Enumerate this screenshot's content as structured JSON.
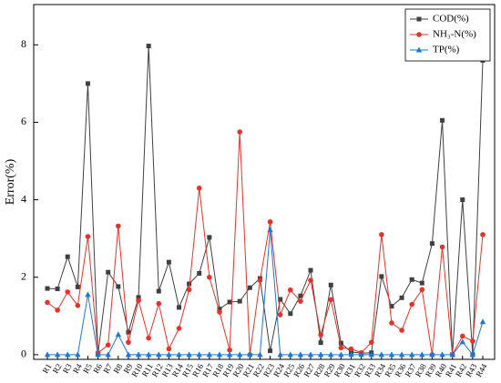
{
  "chart_data": {
    "type": "line",
    "ylabel": "Error(%)",
    "categories": [
      "R1",
      "R2",
      "R3",
      "R4",
      "R5",
      "R6",
      "R7",
      "R8",
      "R9",
      "R10",
      "R11",
      "R12",
      "R13",
      "R14",
      "R15",
      "R16",
      "R17",
      "R18",
      "R19",
      "R20",
      "R21",
      "R22",
      "R23",
      "R24",
      "R25",
      "R26",
      "R27",
      "R28",
      "R29",
      "R30",
      "R31",
      "R32",
      "R33",
      "R34",
      "R35",
      "R36",
      "R37",
      "R38",
      "R39",
      "R40",
      "R41",
      "R42",
      "R43",
      "R44"
    ],
    "series": [
      {
        "name": "COD(%)",
        "color": "#404040",
        "marker": "square",
        "values": [
          1.71,
          1.7,
          2.53,
          1.75,
          7.0,
          0.02,
          2.13,
          1.76,
          0.58,
          1.48,
          7.97,
          1.64,
          2.39,
          1.22,
          1.83,
          2.1,
          3.03,
          1.18,
          1.36,
          1.38,
          1.73,
          1.97,
          0.1,
          1.43,
          1.06,
          1.52,
          2.18,
          0.31,
          1.8,
          0.3,
          0.07,
          0.04,
          0.05,
          2.02,
          1.25,
          1.47,
          1.94,
          1.85,
          2.87,
          6.05,
          0,
          4.0,
          0,
          7.6
        ]
      },
      {
        "name": "NH₃-N(%)",
        "color": "#e8312a",
        "marker": "circle",
        "values": [
          1.35,
          1.15,
          1.62,
          1.27,
          3.05,
          0.05,
          0.25,
          3.32,
          0.32,
          1.4,
          0.43,
          1.32,
          0.15,
          0.68,
          1.68,
          4.3,
          2.0,
          1.1,
          0.12,
          5.75,
          0,
          1.92,
          3.43,
          1.03,
          1.67,
          1.38,
          1.92,
          0.52,
          1.42,
          0.18,
          0.15,
          0.05,
          0.32,
          3.1,
          0.82,
          0.63,
          1.3,
          1.68,
          0,
          2.78,
          0,
          0.48,
          0.35,
          3.1
        ]
      },
      {
        "name": "TP(%)",
        "color": "#1f77d4",
        "marker": "triangle",
        "values": [
          0,
          0,
          0,
          0,
          1.55,
          0,
          0,
          0.52,
          0,
          0,
          0,
          0,
          0,
          0,
          0,
          0,
          0,
          0,
          0,
          0,
          0,
          0,
          3.22,
          0,
          0,
          0,
          0,
          0,
          0,
          0,
          0,
          0,
          0,
          0,
          0,
          0,
          0,
          0,
          0,
          0,
          0,
          0.33,
          0,
          0.85
        ]
      }
    ],
    "ylim": [
      -0.12,
      9.04
    ],
    "yticks": [
      0,
      2,
      4,
      6,
      8
    ],
    "grid": false,
    "legend": "upper right"
  }
}
